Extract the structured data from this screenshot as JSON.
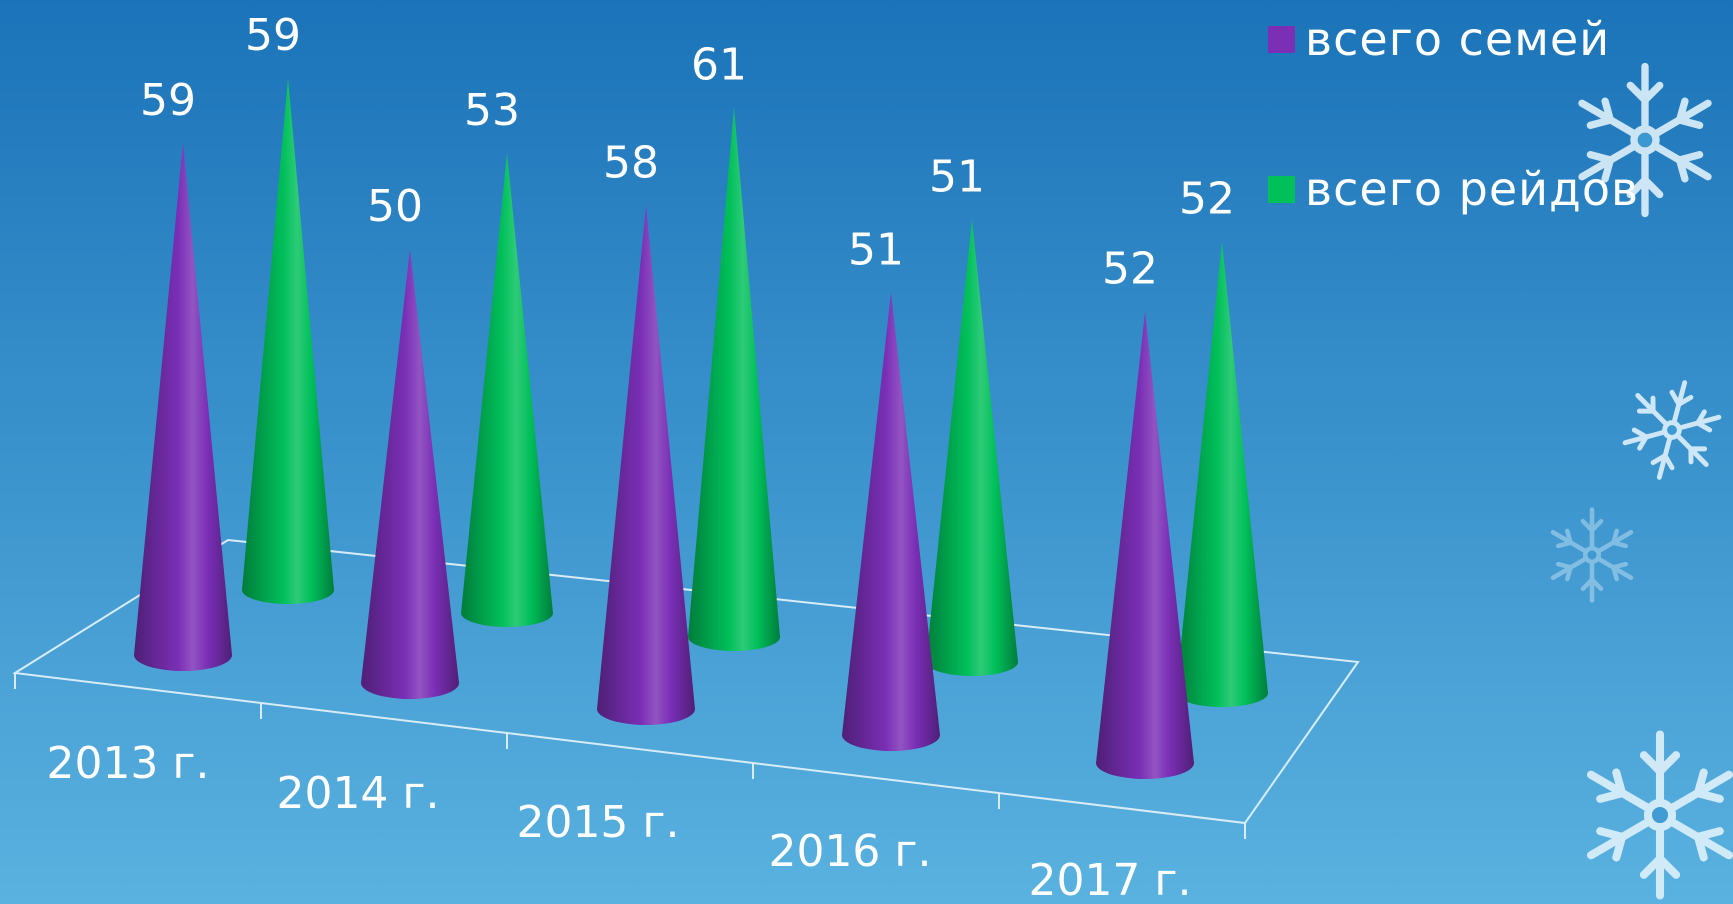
{
  "colors": {
    "background_top": "#1b73b9",
    "background_bottom": "#5ab2e0",
    "series_1": "#7a2fb5",
    "series_2": "#00c05a",
    "text": "#ffffff"
  },
  "chart_data": {
    "type": "bar",
    "style": "3d-cone",
    "categories": [
      "2013 г.",
      "2014 г.",
      "2015 г.",
      "2016 г.",
      "2017 г."
    ],
    "series": [
      {
        "name": "всего семей",
        "values": [
          59,
          50,
          58,
          51,
          52
        ]
      },
      {
        "name": "всего рейдов",
        "values": [
          59,
          53,
          61,
          51,
          52
        ]
      }
    ],
    "data_labels": true,
    "legend_position": "top-right",
    "grid": false,
    "ylim": [
      0,
      61
    ]
  },
  "decorations": [
    "snowflake-icon",
    "snowflake-icon",
    "snowflake-icon",
    "snowflake-icon"
  ]
}
